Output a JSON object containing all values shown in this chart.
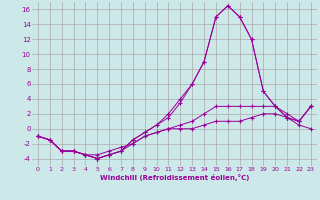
{
  "x": [
    0,
    1,
    2,
    3,
    4,
    5,
    6,
    7,
    8,
    9,
    10,
    11,
    12,
    13,
    14,
    15,
    16,
    17,
    18,
    19,
    20,
    21,
    22,
    23
  ],
  "series1": [
    -1,
    -1.5,
    -3,
    -3,
    -3.5,
    -3.5,
    -3,
    -2.5,
    -2,
    -1,
    -0.5,
    0,
    0.5,
    1,
    2,
    3,
    3,
    3,
    3,
    3,
    3,
    2,
    1,
    3
  ],
  "series2": [
    -1,
    -1.5,
    -3,
    -3,
    -3.5,
    -4,
    -3.5,
    -3,
    -2,
    -1,
    -0.5,
    0,
    0,
    0,
    0.5,
    1,
    1,
    1,
    1.5,
    2,
    2,
    1.5,
    0.5,
    0
  ],
  "series3": [
    -1,
    -1.5,
    -3,
    -3,
    -3.5,
    -4,
    -3.5,
    -3,
    -1.5,
    -0.5,
    0.5,
    2,
    4,
    6,
    9,
    15,
    16.5,
    15,
    12,
    5,
    3,
    1.5,
    1,
    3
  ],
  "series4": [
    -1,
    -1.5,
    -3,
    -3,
    -3.5,
    -4,
    -3.5,
    -3,
    -1.5,
    -0.5,
    0.5,
    1.5,
    3.5,
    6,
    9,
    15,
    16.5,
    15,
    12,
    5,
    3,
    1.5,
    1,
    3
  ],
  "color": "#990099",
  "bg_color": "#cce8e8",
  "grid_color": "#aaaaaa",
  "xlabel": "Windchill (Refroidissement éolien,°C)",
  "ylim": [
    -5,
    17
  ],
  "xlim": [
    -0.5,
    23.5
  ],
  "yticks": [
    -4,
    -2,
    0,
    2,
    4,
    6,
    8,
    10,
    12,
    14,
    16
  ],
  "xticks": [
    0,
    1,
    2,
    3,
    4,
    5,
    6,
    7,
    8,
    9,
    10,
    11,
    12,
    13,
    14,
    15,
    16,
    17,
    18,
    19,
    20,
    21,
    22,
    23
  ]
}
